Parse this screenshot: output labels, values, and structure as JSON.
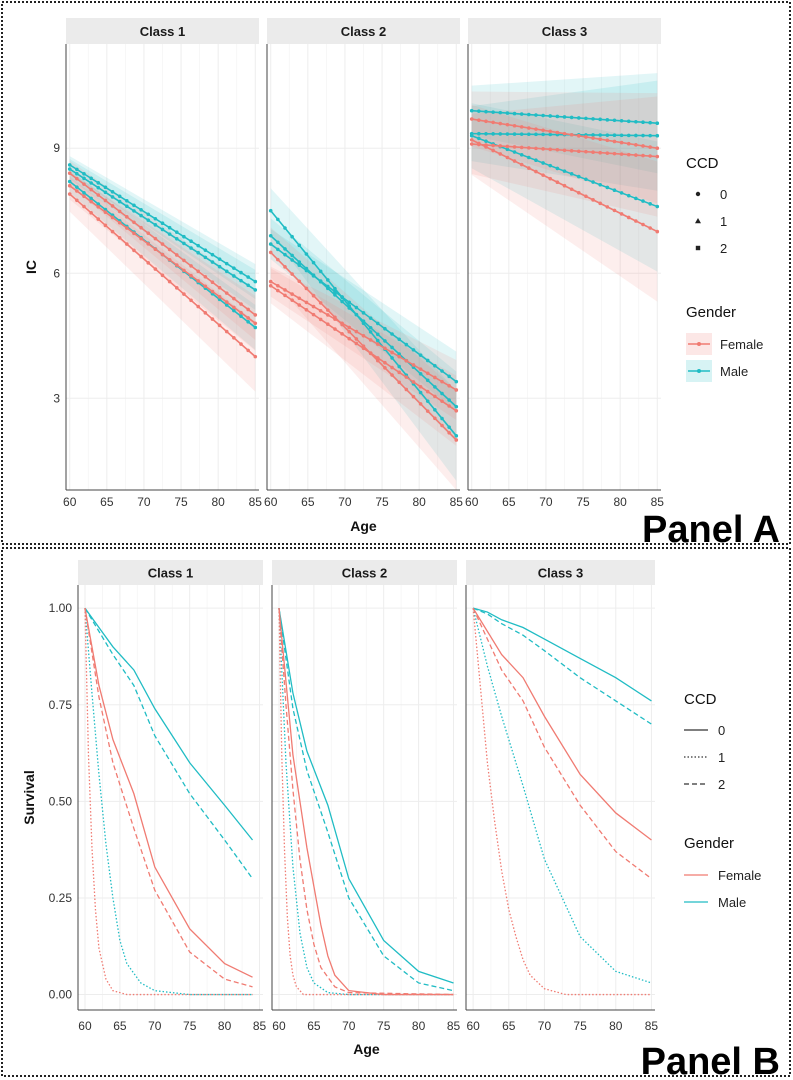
{
  "colors": {
    "female": "#f07b72",
    "male": "#20bcc4",
    "strip": "#ebebeb",
    "grid": "#ededed"
  },
  "chart_data": [
    {
      "type": "line",
      "panel_label": "Panel A",
      "xlabel": "Age",
      "ylabel": "IC",
      "xlim": [
        59.5,
        85.5
      ],
      "ylim": [
        0.8,
        11.5
      ],
      "xticks": [
        60,
        65,
        70,
        75,
        80,
        85
      ],
      "xtick_labels": [
        "60",
        "65",
        "70",
        "75",
        "80",
        "85"
      ],
      "yticks": [
        3,
        6,
        9
      ],
      "ytick_labels": [
        "3",
        "6",
        "9"
      ],
      "facets": [
        "Class 1",
        "Class 2",
        "Class 3"
      ],
      "legend": {
        "ccd_title": "CCD",
        "ccd_items": [
          "0",
          "1",
          "2"
        ],
        "gender_title": "Gender",
        "gender_items": [
          "Female",
          "Male"
        ]
      },
      "series": [
        {
          "facet": "Class 1",
          "gender": "Male",
          "ccd": "0",
          "x": [
            60,
            85
          ],
          "y": [
            8.6,
            5.8
          ],
          "ci": 0.35
        },
        {
          "facet": "Class 1",
          "gender": "Male",
          "ccd": "1",
          "x": [
            60,
            85
          ],
          "y": [
            8.2,
            4.7
          ],
          "ci": 0.45
        },
        {
          "facet": "Class 1",
          "gender": "Male",
          "ccd": "2",
          "x": [
            60,
            85
          ],
          "y": [
            8.5,
            5.6
          ],
          "ci": 0.4
        },
        {
          "facet": "Class 1",
          "gender": "Female",
          "ccd": "0",
          "x": [
            60,
            85
          ],
          "y": [
            8.4,
            5.0
          ],
          "ci": 0.5
        },
        {
          "facet": "Class 1",
          "gender": "Female",
          "ccd": "1",
          "x": [
            60,
            85
          ],
          "y": [
            7.9,
            4.0
          ],
          "ci": 0.7
        },
        {
          "facet": "Class 1",
          "gender": "Female",
          "ccd": "2",
          "x": [
            60,
            85
          ],
          "y": [
            8.1,
            4.8
          ],
          "ci": 0.55
        },
        {
          "facet": "Class 2",
          "gender": "Male",
          "ccd": "0",
          "x": [
            60,
            85
          ],
          "y": [
            6.7,
            3.4
          ],
          "ci": 0.6
        },
        {
          "facet": "Class 2",
          "gender": "Male",
          "ccd": "1",
          "x": [
            60,
            85
          ],
          "y": [
            7.5,
            2.1
          ],
          "ci": 0.9
        },
        {
          "facet": "Class 2",
          "gender": "Male",
          "ccd": "2",
          "x": [
            60,
            85
          ],
          "y": [
            6.9,
            2.8
          ],
          "ci": 0.7
        },
        {
          "facet": "Class 2",
          "gender": "Female",
          "ccd": "0",
          "x": [
            60,
            85
          ],
          "y": [
            5.8,
            3.2
          ],
          "ci": 0.6
        },
        {
          "facet": "Class 2",
          "gender": "Female",
          "ccd": "1",
          "x": [
            60,
            85
          ],
          "y": [
            6.5,
            2.0
          ],
          "ci": 1.0
        },
        {
          "facet": "Class 2",
          "gender": "Female",
          "ccd": "2",
          "x": [
            60,
            85
          ],
          "y": [
            5.7,
            2.7
          ],
          "ci": 0.7
        },
        {
          "facet": "Class 3",
          "gender": "Male",
          "ccd": "0",
          "x": [
            60,
            85
          ],
          "y": [
            9.9,
            9.6
          ],
          "ci": 1.0
        },
        {
          "facet": "Class 3",
          "gender": "Male",
          "ccd": "1",
          "x": [
            60,
            85
          ],
          "y": [
            9.3,
            7.6
          ],
          "ci": 1.3
        },
        {
          "facet": "Class 3",
          "gender": "Male",
          "ccd": "2",
          "x": [
            60,
            85
          ],
          "y": [
            9.35,
            9.3
          ],
          "ci": 1.1
        },
        {
          "facet": "Class 3",
          "gender": "Female",
          "ccd": "0",
          "x": [
            60,
            85
          ],
          "y": [
            9.7,
            9.0
          ],
          "ci": 1.1
        },
        {
          "facet": "Class 3",
          "gender": "Female",
          "ccd": "1",
          "x": [
            60,
            85
          ],
          "y": [
            9.2,
            7.0
          ],
          "ci": 1.4
        },
        {
          "facet": "Class 3",
          "gender": "Female",
          "ccd": "2",
          "x": [
            60,
            85
          ],
          "y": [
            9.1,
            8.8
          ],
          "ci": 1.2
        }
      ]
    },
    {
      "type": "line",
      "panel_label": "Panel B",
      "xlabel": "Age",
      "ylabel": "Survival",
      "xlim": [
        59,
        85.5
      ],
      "ylim": [
        -0.04,
        1.06
      ],
      "xticks": [
        60,
        65,
        70,
        75,
        80,
        85
      ],
      "xtick_labels": [
        "60",
        "65",
        "70",
        "75",
        "80",
        "85"
      ],
      "yticks": [
        0,
        0.25,
        0.5,
        0.75,
        1
      ],
      "ytick_labels": [
        "0.00",
        "0.25",
        "0.50",
        "0.75",
        "1.00"
      ],
      "facets": [
        "Class 1",
        "Class 2",
        "Class 3"
      ],
      "legend": {
        "ccd_title": "CCD",
        "ccd_items": [
          "0",
          "1",
          "2"
        ],
        "gender_title": "Gender",
        "gender_items": [
          "Female",
          "Male"
        ]
      },
      "series": [
        {
          "facet": "Class 1",
          "gender": "Male",
          "ccd": "0",
          "x": [
            60,
            62,
            64,
            67,
            70,
            75,
            80,
            84
          ],
          "y": [
            1.0,
            0.95,
            0.9,
            0.84,
            0.74,
            0.6,
            0.49,
            0.4
          ]
        },
        {
          "facet": "Class 1",
          "gender": "Male",
          "ccd": "2",
          "x": [
            60,
            62,
            64,
            67,
            70,
            75,
            80,
            84
          ],
          "y": [
            1.0,
            0.94,
            0.88,
            0.8,
            0.67,
            0.52,
            0.4,
            0.3
          ]
        },
        {
          "facet": "Class 1",
          "gender": "Male",
          "ccd": "1",
          "x": [
            60,
            61,
            62,
            63,
            64,
            65,
            66,
            68,
            70,
            75,
            84
          ],
          "y": [
            1.0,
            0.78,
            0.57,
            0.39,
            0.25,
            0.14,
            0.08,
            0.03,
            0.01,
            0.0,
            0.0
          ]
        },
        {
          "facet": "Class 1",
          "gender": "Female",
          "ccd": "0",
          "x": [
            60,
            62,
            64,
            67,
            70,
            75,
            80,
            84
          ],
          "y": [
            1.0,
            0.8,
            0.66,
            0.52,
            0.33,
            0.17,
            0.08,
            0.045
          ]
        },
        {
          "facet": "Class 1",
          "gender": "Female",
          "ccd": "2",
          "x": [
            60,
            62,
            64,
            67,
            70,
            75,
            80,
            84
          ],
          "y": [
            1.0,
            0.77,
            0.6,
            0.43,
            0.27,
            0.11,
            0.04,
            0.02
          ]
        },
        {
          "facet": "Class 1",
          "gender": "Female",
          "ccd": "1",
          "x": [
            60,
            60.5,
            61,
            61.5,
            62,
            63,
            64,
            66,
            84
          ],
          "y": [
            1.0,
            0.62,
            0.38,
            0.22,
            0.12,
            0.04,
            0.01,
            0.0,
            0.0
          ]
        },
        {
          "facet": "Class 2",
          "gender": "Male",
          "ccd": "0",
          "x": [
            60,
            62,
            64,
            67,
            70,
            75,
            80,
            85
          ],
          "y": [
            1.0,
            0.78,
            0.63,
            0.49,
            0.3,
            0.14,
            0.06,
            0.03
          ]
        },
        {
          "facet": "Class 2",
          "gender": "Male",
          "ccd": "2",
          "x": [
            60,
            62,
            64,
            67,
            70,
            75,
            80,
            85
          ],
          "y": [
            1.0,
            0.74,
            0.58,
            0.42,
            0.25,
            0.1,
            0.03,
            0.01
          ]
        },
        {
          "facet": "Class 2",
          "gender": "Male",
          "ccd": "1",
          "x": [
            60,
            61,
            62,
            63,
            64,
            65,
            67,
            70,
            85
          ],
          "y": [
            1.0,
            0.6,
            0.33,
            0.16,
            0.07,
            0.03,
            0.005,
            0.0,
            0.0
          ]
        },
        {
          "facet": "Class 2",
          "gender": "Female",
          "ccd": "0",
          "x": [
            60,
            62,
            64,
            65,
            66,
            67,
            68,
            70,
            75,
            85
          ],
          "y": [
            1.0,
            0.62,
            0.38,
            0.28,
            0.18,
            0.1,
            0.05,
            0.01,
            0.0,
            0.0
          ]
        },
        {
          "facet": "Class 2",
          "gender": "Female",
          "ccd": "2",
          "x": [
            60,
            61,
            62,
            63,
            64,
            65,
            66,
            68,
            70,
            85
          ],
          "y": [
            1.0,
            0.75,
            0.53,
            0.35,
            0.22,
            0.13,
            0.07,
            0.02,
            0.005,
            0.0
          ]
        },
        {
          "facet": "Class 2",
          "gender": "Female",
          "ccd": "1",
          "x": [
            60,
            60.4,
            60.8,
            61.2,
            61.6,
            62,
            62.5,
            63.5,
            85
          ],
          "y": [
            1.0,
            0.62,
            0.37,
            0.2,
            0.1,
            0.05,
            0.02,
            0.0,
            0.0
          ]
        },
        {
          "facet": "Class 3",
          "gender": "Male",
          "ccd": "0",
          "x": [
            60,
            62,
            64,
            67,
            70,
            75,
            80,
            85
          ],
          "y": [
            1.0,
            0.99,
            0.97,
            0.95,
            0.92,
            0.87,
            0.82,
            0.76
          ]
        },
        {
          "facet": "Class 3",
          "gender": "Male",
          "ccd": "2",
          "x": [
            60,
            62,
            64,
            67,
            70,
            75,
            80,
            85
          ],
          "y": [
            1.0,
            0.985,
            0.96,
            0.93,
            0.89,
            0.82,
            0.76,
            0.7
          ]
        },
        {
          "facet": "Class 3",
          "gender": "Male",
          "ccd": "1",
          "x": [
            60,
            62,
            64,
            67,
            70,
            75,
            80,
            85
          ],
          "y": [
            1.0,
            0.85,
            0.72,
            0.54,
            0.35,
            0.15,
            0.06,
            0.03
          ]
        },
        {
          "facet": "Class 3",
          "gender": "Female",
          "ccd": "0",
          "x": [
            60,
            62,
            64,
            67,
            70,
            75,
            80,
            85
          ],
          "y": [
            1.0,
            0.94,
            0.88,
            0.82,
            0.72,
            0.57,
            0.47,
            0.4
          ]
        },
        {
          "facet": "Class 3",
          "gender": "Female",
          "ccd": "2",
          "x": [
            60,
            62,
            64,
            67,
            70,
            75,
            80,
            85
          ],
          "y": [
            1.0,
            0.92,
            0.84,
            0.76,
            0.64,
            0.49,
            0.37,
            0.3
          ]
        },
        {
          "facet": "Class 3",
          "gender": "Female",
          "ccd": "1",
          "x": [
            60,
            61,
            62,
            63,
            64,
            65,
            66,
            67,
            68,
            70,
            73,
            85
          ],
          "y": [
            1.0,
            0.8,
            0.6,
            0.45,
            0.32,
            0.22,
            0.15,
            0.09,
            0.05,
            0.015,
            0.0,
            0.0
          ]
        }
      ]
    }
  ]
}
